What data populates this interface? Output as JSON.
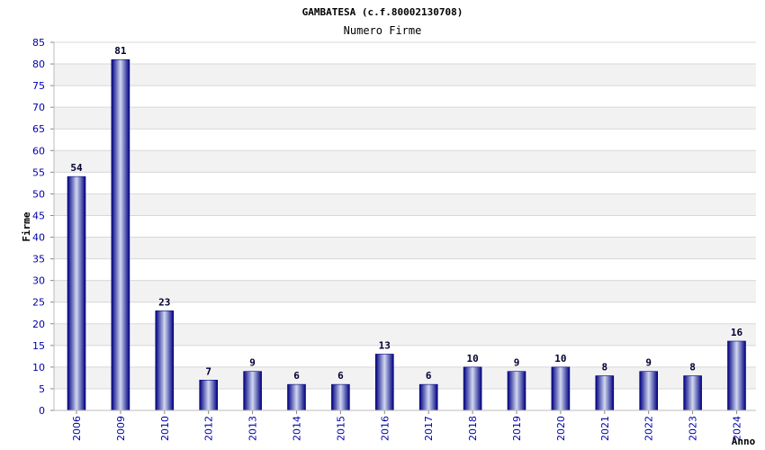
{
  "chart_data": {
    "type": "bar",
    "title": "GAMBATESA (c.f.80002130708)",
    "subtitle": "Numero Firme",
    "ylabel": "Firme",
    "xlabel": "Anno",
    "ylim": [
      0,
      85
    ],
    "yticks": [
      0,
      5,
      10,
      15,
      20,
      25,
      30,
      35,
      40,
      45,
      50,
      55,
      60,
      65,
      70,
      75,
      80,
      85
    ],
    "categories": [
      "2006",
      "2009",
      "2010",
      "2012",
      "2013",
      "2014",
      "2015",
      "2016",
      "2017",
      "2018",
      "2019",
      "2020",
      "2021",
      "2022",
      "2023",
      "2024"
    ],
    "values": [
      54,
      81,
      23,
      7,
      9,
      6,
      6,
      13,
      6,
      10,
      9,
      10,
      8,
      9,
      8,
      16
    ],
    "grid": true,
    "legend": "none",
    "colors": {
      "bar_dark": "#000080",
      "bar_light": "#d0d8f0",
      "band": "#f2f2f2",
      "gridline": "#d8d8d8",
      "tick_text": "#0000aa"
    }
  }
}
